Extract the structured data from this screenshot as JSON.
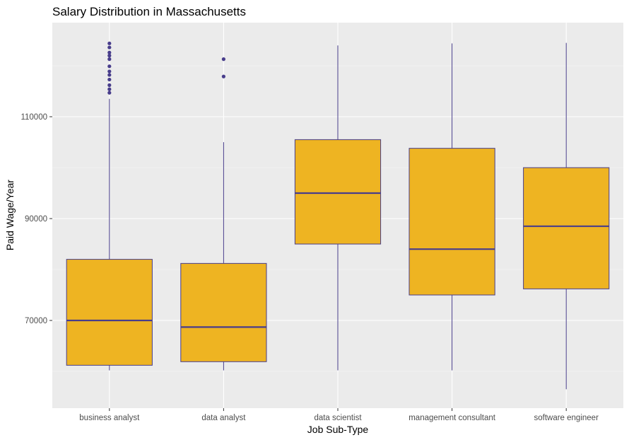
{
  "chart_data": {
    "type": "boxplot",
    "title": "Salary Distribution in Massachusetts",
    "xlabel": "Job Sub-Type",
    "ylabel": "Paid Wage/Year",
    "ylim": [
      54000,
      122000
    ],
    "yticks": [
      70000,
      90000,
      110000
    ],
    "ytick_labels": [
      "70000",
      "90000",
      "110000"
    ],
    "grid": true,
    "legend": "none",
    "categories": [
      "business analyst",
      "data analyst",
      "data scientist",
      "management consultant",
      "software engineer"
    ],
    "boxes": [
      {
        "category": "business analyst",
        "whisker_low": 60200,
        "q1": 61200,
        "median": 70000,
        "q3": 82000,
        "whisker_high": 113500,
        "outliers": [
          114700,
          115400,
          116200,
          117300,
          118200,
          118900,
          119900,
          121300,
          122000,
          122600,
          123600,
          124400
        ]
      },
      {
        "category": "data analyst",
        "whisker_low": 60200,
        "q1": 61900,
        "median": 68700,
        "q3": 81200,
        "whisker_high": 105000,
        "outliers": [
          117900,
          121300
        ]
      },
      {
        "category": "data scientist",
        "whisker_low": 60200,
        "q1": 85000,
        "median": 95000,
        "q3": 105500,
        "whisker_high": 124000,
        "outliers": []
      },
      {
        "category": "management consultant",
        "whisker_low": 60200,
        "q1": 75000,
        "median": 84000,
        "q3": 103800,
        "whisker_high": 124400,
        "outliers": []
      },
      {
        "category": "software engineer",
        "whisker_low": 56500,
        "q1": 76200,
        "median": 88500,
        "q3": 100000,
        "whisker_high": 124500,
        "outliers": []
      }
    ],
    "colors": {
      "box_fill": "#EEB422",
      "box_line": "#483D8B",
      "panel_bg": "#EBEBEB",
      "grid_major": "#FFFFFF",
      "grid_minor": "#F7F7F7"
    }
  }
}
